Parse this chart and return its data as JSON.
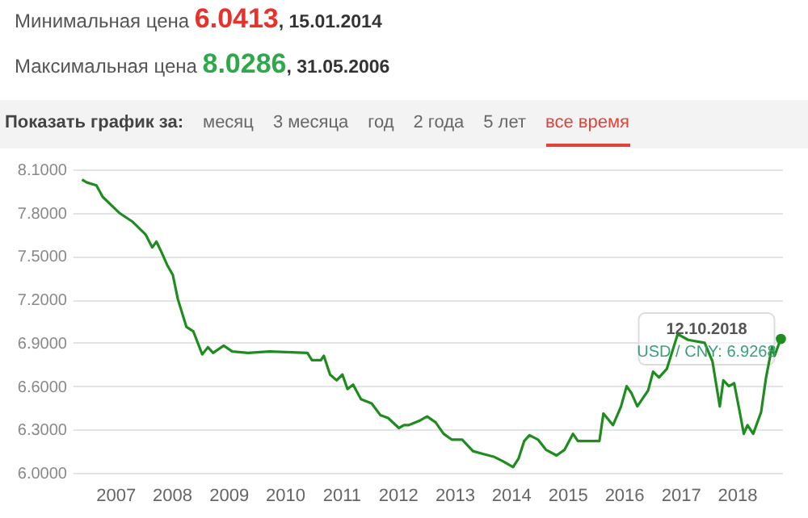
{
  "chart_data": {
    "type": "line",
    "annotations": [
      "Минимальная цена",
      "6.0413",
      ", 15.01.2014",
      "Максимальная цена",
      "8.0286",
      ", 31.05.2006",
      "Показать график за:",
      "месяц",
      "3 месяца",
      "год",
      "2 года",
      "5 лет",
      "все время",
      {
        "text": "12.10.2018",
        "x": "2018-10-12",
        "y": 6.9268
      },
      {
        "text": "USD / CNY: 6.9268",
        "x": "2018-10-12",
        "y": 6.9268
      }
    ],
    "x": [
      "2006-05-31",
      "2006-07-01",
      "2006-09-01",
      "2006-10-12",
      "2007-01-26",
      "2007-04-20",
      "2007-07-16",
      "2007-08-28",
      "2007-09-24",
      "2007-10-30",
      "2007-12-02",
      "2008-01-08",
      "2008-02-10",
      "2008-04-05",
      "2008-05-19",
      "2008-07-16",
      "2008-08-22",
      "2008-09-24",
      "2008-12-02",
      "2009-01-26",
      "2009-05-08",
      "2009-09-24",
      "2010-05-27",
      "2010-06-25",
      "2010-08-22",
      "2010-09-10",
      "2010-10-20",
      "2010-12-02",
      "2011-01-08",
      "2011-02-10",
      "2011-03-18",
      "2011-05-08",
      "2011-07-16",
      "2011-09-10",
      "2011-10-30",
      "2012-01-08",
      "2012-02-10",
      "2012-03-10",
      "2012-05-19",
      "2012-07-08",
      "2012-09-01",
      "2012-10-23",
      "2012-12-14",
      "2013-02-20",
      "2013-05-01",
      "2013-07-08",
      "2013-09-16",
      "2013-11-10",
      "2014-01-15",
      "2014-02-20",
      "2014-03-28",
      "2014-05-01",
      "2014-06-25",
      "2014-08-15",
      "2014-10-23",
      "2014-12-14",
      "2015-02-06",
      "2015-03-10",
      "2015-07-27",
      "2015-08-22",
      "2015-10-23",
      "2015-12-14",
      "2016-01-19",
      "2016-02-20",
      "2016-03-28",
      "2016-06-06",
      "2016-07-08",
      "2016-08-15",
      "2016-10-05",
      "2016-12-14",
      "2017-02-20",
      "2017-06-06",
      "2017-07-27",
      "2017-09-12",
      "2017-10-05",
      "2017-11-10",
      "2017-12-14",
      "2018-01-19",
      "2018-02-14",
      "2018-03-10",
      "2018-04-16",
      "2018-06-06",
      "2018-07-08",
      "2018-08-15",
      "2018-09-01",
      "2018-10-12"
    ],
    "series": [
      {
        "color": "#1e8c1e",
        "values": [
          8.03,
          8.01,
          7.99,
          7.91,
          7.8,
          7.74,
          7.65,
          7.56,
          7.6,
          7.52,
          7.44,
          7.37,
          7.2,
          7.01,
          6.98,
          6.82,
          6.87,
          6.83,
          6.88,
          6.84,
          6.83,
          6.84,
          6.83,
          6.78,
          6.78,
          6.81,
          6.68,
          6.64,
          6.68,
          6.58,
          6.61,
          6.51,
          6.48,
          6.4,
          6.38,
          6.31,
          6.33,
          6.33,
          6.36,
          6.39,
          6.35,
          6.27,
          6.23,
          6.23,
          6.15,
          6.13,
          6.11,
          6.08,
          6.04,
          6.1,
          6.22,
          6.26,
          6.23,
          6.16,
          6.12,
          6.16,
          6.27,
          6.22,
          6.22,
          6.41,
          6.33,
          6.46,
          6.6,
          6.55,
          6.46,
          6.57,
          6.7,
          6.66,
          6.72,
          6.96,
          6.92,
          6.9,
          6.77,
          6.46,
          6.64,
          6.6,
          6.62,
          6.42,
          6.27,
          6.33,
          6.27,
          6.42,
          6.66,
          6.87,
          6.81,
          6.93
        ]
      }
    ],
    "xlim": [
      "2006-04-01",
      "2018-10-20"
    ],
    "xticks": [
      "2007",
      "2008",
      "2009",
      "2010",
      "2011",
      "2012",
      "2013",
      "2014",
      "2015",
      "2016",
      "2017",
      "2018"
    ],
    "ylim": [
      6.0,
      8.1
    ],
    "yticks": [
      {
        "value": 6.0,
        "label": "6.0000"
      },
      {
        "value": 6.3,
        "label": "6.3000"
      },
      {
        "value": 6.6,
        "label": "6.6000"
      },
      {
        "value": 6.9,
        "label": "6.9000"
      },
      {
        "value": 7.2,
        "label": "7.2000"
      },
      {
        "value": 7.5,
        "label": "7.5000"
      },
      {
        "value": 7.8,
        "label": "7.8000"
      },
      {
        "value": 8.1,
        "label": "8.1000"
      }
    ],
    "grid": "y",
    "marker": "none",
    "line_style": "solid"
  }
}
